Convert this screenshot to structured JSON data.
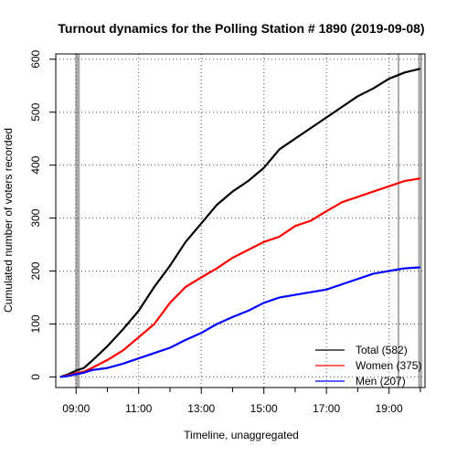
{
  "chart_data": {
    "type": "line",
    "title": "Turnout dynamics for the Polling Station # 1890 (2019-09-08)",
    "xlabel": "Timeline, unaggregated",
    "ylabel": "Cumulated number of voters recorded",
    "xlim_hours": [
      8.35,
      20.15
    ],
    "ylim": [
      -20,
      610
    ],
    "x_ticks": [
      {
        "hour": 9,
        "label": "09:00"
      },
      {
        "hour": 11,
        "label": "11:00"
      },
      {
        "hour": 13,
        "label": "13:00"
      },
      {
        "hour": 15,
        "label": "15:00"
      },
      {
        "hour": 17,
        "label": "17:00"
      },
      {
        "hour": 19,
        "label": "19:00"
      }
    ],
    "minor_x_ticks": [
      10,
      12,
      14,
      16,
      18,
      20
    ],
    "y_ticks": [
      0,
      100,
      200,
      300,
      400,
      500,
      600
    ],
    "grid": true,
    "gray_bands": [
      {
        "start": 8.97,
        "end": 9.12
      },
      {
        "start": 19.27,
        "end": 19.33
      },
      {
        "start": 19.93,
        "end": 20.06
      }
    ],
    "legend_position": "bottom-right",
    "series": [
      {
        "name": "Total (582)",
        "color": "#000000",
        "points": [
          [
            8.5,
            0
          ],
          [
            8.75,
            5
          ],
          [
            9.0,
            12
          ],
          [
            9.25,
            17
          ],
          [
            9.5,
            30
          ],
          [
            10.0,
            58
          ],
          [
            10.5,
            90
          ],
          [
            11.0,
            125
          ],
          [
            11.5,
            170
          ],
          [
            12.0,
            210
          ],
          [
            12.5,
            255
          ],
          [
            13.0,
            290
          ],
          [
            13.5,
            325
          ],
          [
            14.0,
            350
          ],
          [
            14.5,
            370
          ],
          [
            15.0,
            395
          ],
          [
            15.5,
            430
          ],
          [
            16.0,
            450
          ],
          [
            16.5,
            470
          ],
          [
            17.0,
            490
          ],
          [
            17.5,
            510
          ],
          [
            18.0,
            530
          ],
          [
            18.5,
            545
          ],
          [
            19.0,
            563
          ],
          [
            19.5,
            575
          ],
          [
            20.0,
            582
          ]
        ]
      },
      {
        "name": "Women (375)",
        "color": "#ff0000",
        "points": [
          [
            8.5,
            0
          ],
          [
            8.75,
            3
          ],
          [
            9.0,
            7
          ],
          [
            9.25,
            10
          ],
          [
            9.5,
            17
          ],
          [
            10.0,
            32
          ],
          [
            10.5,
            50
          ],
          [
            11.0,
            75
          ],
          [
            11.5,
            100
          ],
          [
            12.0,
            140
          ],
          [
            12.5,
            170
          ],
          [
            13.0,
            188
          ],
          [
            13.5,
            205
          ],
          [
            14.0,
            225
          ],
          [
            14.5,
            240
          ],
          [
            15.0,
            255
          ],
          [
            15.5,
            265
          ],
          [
            16.0,
            285
          ],
          [
            16.5,
            295
          ],
          [
            17.0,
            313
          ],
          [
            17.5,
            330
          ],
          [
            18.0,
            340
          ],
          [
            18.5,
            350
          ],
          [
            19.0,
            360
          ],
          [
            19.5,
            370
          ],
          [
            20.0,
            375
          ]
        ]
      },
      {
        "name": "Men (207)",
        "color": "#0000ff",
        "points": [
          [
            8.5,
            0
          ],
          [
            8.75,
            2
          ],
          [
            9.0,
            5
          ],
          [
            9.25,
            8
          ],
          [
            9.5,
            13
          ],
          [
            10.0,
            17
          ],
          [
            10.5,
            25
          ],
          [
            11.0,
            35
          ],
          [
            11.5,
            45
          ],
          [
            12.0,
            55
          ],
          [
            12.5,
            70
          ],
          [
            13.0,
            83
          ],
          [
            13.5,
            100
          ],
          [
            14.0,
            113
          ],
          [
            14.5,
            125
          ],
          [
            15.0,
            140
          ],
          [
            15.5,
            150
          ],
          [
            16.0,
            155
          ],
          [
            16.5,
            160
          ],
          [
            17.0,
            165
          ],
          [
            17.5,
            175
          ],
          [
            18.0,
            185
          ],
          [
            18.5,
            195
          ],
          [
            19.0,
            200
          ],
          [
            19.5,
            205
          ],
          [
            20.0,
            207
          ]
        ]
      }
    ]
  }
}
